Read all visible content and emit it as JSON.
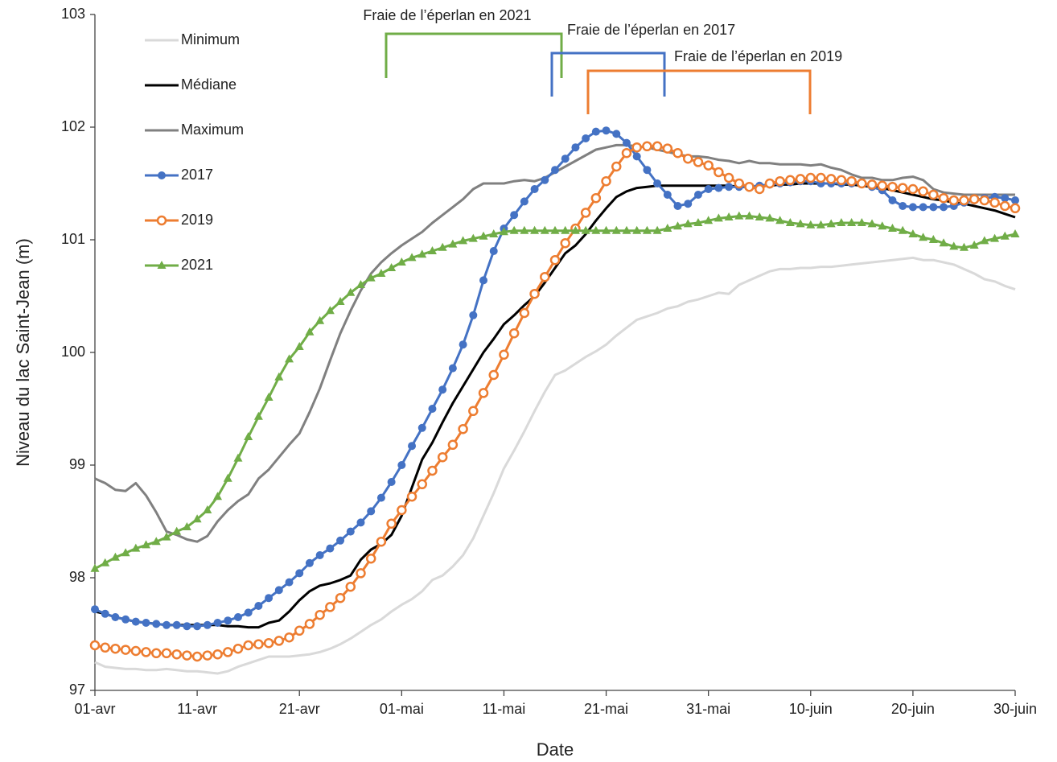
{
  "chart_data": {
    "type": "line",
    "x_label": "Date",
    "y_label": "Niveau du lac Saint-Jean (m)",
    "categories": [
      "01-avr",
      null,
      null,
      null,
      null,
      null,
      null,
      null,
      null,
      null,
      "11-avr",
      null,
      null,
      null,
      null,
      null,
      null,
      null,
      null,
      null,
      "21-avr",
      null,
      null,
      null,
      null,
      null,
      null,
      null,
      null,
      null,
      "01-mai",
      null,
      null,
      null,
      null,
      null,
      null,
      null,
      null,
      null,
      "11-mai",
      null,
      null,
      null,
      null,
      null,
      null,
      null,
      null,
      null,
      "21-mai",
      null,
      null,
      null,
      null,
      null,
      null,
      null,
      null,
      null,
      "31-mai",
      null,
      null,
      null,
      null,
      null,
      null,
      null,
      null,
      null,
      "10-juin",
      null,
      null,
      null,
      null,
      null,
      null,
      null,
      null,
      null,
      "20-juin",
      null,
      null,
      null,
      null,
      null,
      null,
      null,
      null,
      null,
      "30-juin"
    ],
    "ylim": [
      97,
      103
    ],
    "yticks": [
      97,
      98,
      99,
      100,
      101,
      102,
      103
    ],
    "legend": "top-left",
    "series": [
      {
        "name": "Minimum",
        "color": "#d9d9d9",
        "marker": "none",
        "values": [
          97.25,
          97.21,
          97.2,
          97.19,
          97.19,
          97.18,
          97.18,
          97.19,
          97.18,
          97.17,
          97.17,
          97.16,
          97.15,
          97.17,
          97.21,
          97.24,
          97.27,
          97.3,
          97.3,
          97.3,
          97.31,
          97.32,
          97.34,
          97.37,
          97.41,
          97.46,
          97.52,
          97.58,
          97.63,
          97.7,
          97.76,
          97.81,
          97.88,
          97.98,
          98.02,
          98.1,
          98.2,
          98.35,
          98.55,
          98.75,
          98.97,
          99.13,
          99.3,
          99.48,
          99.65,
          99.8,
          99.84,
          99.9,
          99.96,
          100.01,
          100.07,
          100.15,
          100.22,
          100.29,
          100.32,
          100.35,
          100.39,
          100.41,
          100.45,
          100.47,
          100.5,
          100.53,
          100.52,
          100.6,
          100.64,
          100.68,
          100.72,
          100.74,
          100.74,
          100.75,
          100.75,
          100.76,
          100.76,
          100.77,
          100.78,
          100.79,
          100.8,
          100.81,
          100.82,
          100.83,
          100.84,
          100.82,
          100.82,
          100.8,
          100.78,
          100.74,
          100.7,
          100.65,
          100.63,
          100.59,
          100.56
        ]
      },
      {
        "name": "Médiane",
        "color": "#000000",
        "marker": "none",
        "values": [
          97.7,
          97.68,
          97.65,
          97.63,
          97.61,
          97.6,
          97.59,
          97.58,
          97.58,
          97.58,
          97.58,
          97.58,
          97.58,
          97.57,
          97.57,
          97.56,
          97.56,
          97.6,
          97.62,
          97.7,
          97.8,
          97.88,
          97.93,
          97.95,
          97.98,
          98.02,
          98.16,
          98.25,
          98.3,
          98.38,
          98.55,
          98.8,
          99.05,
          99.2,
          99.38,
          99.55,
          99.7,
          99.85,
          100.0,
          100.12,
          100.25,
          100.33,
          100.42,
          100.5,
          100.62,
          100.75,
          100.88,
          100.95,
          101.05,
          101.17,
          101.28,
          101.38,
          101.43,
          101.46,
          101.47,
          101.48,
          101.48,
          101.48,
          101.48,
          101.48,
          101.48,
          101.48,
          101.48,
          101.47,
          101.47,
          101.48,
          101.48,
          101.49,
          101.49,
          101.5,
          101.5,
          101.5,
          101.5,
          101.49,
          101.49,
          101.48,
          101.47,
          101.46,
          101.44,
          101.42,
          101.4,
          101.38,
          101.36,
          101.35,
          101.33,
          101.32,
          101.3,
          101.28,
          101.26,
          101.23,
          101.2
        ]
      },
      {
        "name": "Maximum",
        "color": "#808080",
        "marker": "none",
        "values": [
          98.88,
          98.84,
          98.78,
          98.77,
          98.84,
          98.73,
          98.58,
          98.41,
          98.38,
          98.34,
          98.32,
          98.37,
          98.5,
          98.6,
          98.68,
          98.74,
          98.88,
          98.96,
          99.07,
          99.18,
          99.28,
          99.47,
          99.68,
          99.93,
          100.17,
          100.37,
          100.55,
          100.7,
          100.8,
          100.88,
          100.95,
          101.01,
          101.07,
          101.15,
          101.22,
          101.29,
          101.36,
          101.45,
          101.5,
          101.5,
          101.5,
          101.52,
          101.53,
          101.52,
          101.55,
          101.6,
          101.65,
          101.7,
          101.75,
          101.8,
          101.82,
          101.84,
          101.84,
          101.83,
          101.82,
          101.8,
          101.78,
          101.76,
          101.74,
          101.74,
          101.73,
          101.71,
          101.7,
          101.68,
          101.7,
          101.68,
          101.68,
          101.67,
          101.67,
          101.67,
          101.66,
          101.67,
          101.64,
          101.62,
          101.58,
          101.55,
          101.55,
          101.53,
          101.53,
          101.55,
          101.56,
          101.53,
          101.45,
          101.42,
          101.41,
          101.4,
          101.4,
          101.4,
          101.4,
          101.4,
          101.4
        ]
      },
      {
        "name": "2017",
        "color": "#4472c4",
        "marker": "circle",
        "values": [
          97.72,
          97.68,
          97.65,
          97.63,
          97.61,
          97.6,
          97.59,
          97.58,
          97.58,
          97.57,
          97.57,
          97.58,
          97.6,
          97.62,
          97.65,
          97.69,
          97.75,
          97.82,
          97.89,
          97.96,
          98.04,
          98.13,
          98.2,
          98.26,
          98.33,
          98.41,
          98.49,
          98.59,
          98.71,
          98.85,
          99.0,
          99.17,
          99.33,
          99.5,
          99.67,
          99.86,
          100.07,
          100.33,
          100.64,
          100.9,
          101.1,
          101.22,
          101.34,
          101.45,
          101.53,
          101.62,
          101.72,
          101.82,
          101.9,
          101.96,
          101.97,
          101.94,
          101.86,
          101.74,
          101.62,
          101.5,
          101.4,
          101.3,
          101.32,
          101.4,
          101.45,
          101.46,
          101.47,
          101.47,
          101.47,
          101.48,
          101.49,
          101.5,
          101.51,
          101.52,
          101.52,
          101.5,
          101.5,
          101.5,
          101.5,
          101.5,
          101.47,
          101.44,
          101.35,
          101.3,
          101.29,
          101.29,
          101.29,
          101.29,
          101.3,
          101.33,
          101.35,
          101.37,
          101.38,
          101.37,
          101.35
        ]
      },
      {
        "name": "2019",
        "color": "#ed7d31",
        "marker": "circle-open",
        "values": [
          97.4,
          97.38,
          97.37,
          97.36,
          97.35,
          97.34,
          97.33,
          97.33,
          97.32,
          97.31,
          97.3,
          97.31,
          97.32,
          97.34,
          97.37,
          97.4,
          97.41,
          97.42,
          97.44,
          97.47,
          97.53,
          97.59,
          97.67,
          97.74,
          97.82,
          97.92,
          98.04,
          98.17,
          98.32,
          98.48,
          98.6,
          98.72,
          98.83,
          98.95,
          99.07,
          99.18,
          99.32,
          99.48,
          99.64,
          99.8,
          99.98,
          100.17,
          100.35,
          100.52,
          100.67,
          100.82,
          100.97,
          101.1,
          101.24,
          101.37,
          101.52,
          101.65,
          101.77,
          101.82,
          101.83,
          101.83,
          101.81,
          101.77,
          101.72,
          101.69,
          101.66,
          101.6,
          101.55,
          101.5,
          101.47,
          101.45,
          101.5,
          101.52,
          101.53,
          101.54,
          101.55,
          101.55,
          101.54,
          101.53,
          101.52,
          101.5,
          101.49,
          101.48,
          101.47,
          101.46,
          101.45,
          101.43,
          101.4,
          101.37,
          101.35,
          101.35,
          101.36,
          101.35,
          101.33,
          101.3,
          101.28
        ]
      },
      {
        "name": "2021",
        "color": "#70ad47",
        "marker": "triangle",
        "values": [
          98.08,
          98.13,
          98.18,
          98.22,
          98.26,
          98.29,
          98.32,
          98.36,
          98.41,
          98.45,
          98.52,
          98.6,
          98.72,
          98.88,
          99.06,
          99.25,
          99.43,
          99.6,
          99.78,
          99.94,
          100.05,
          100.18,
          100.28,
          100.37,
          100.45,
          100.53,
          100.6,
          100.66,
          100.7,
          100.75,
          100.8,
          100.84,
          100.87,
          100.9,
          100.93,
          100.96,
          100.99,
          101.01,
          101.03,
          101.05,
          101.07,
          101.08,
          101.08,
          101.08,
          101.08,
          101.08,
          101.08,
          101.08,
          101.08,
          101.08,
          101.08,
          101.08,
          101.08,
          101.08,
          101.08,
          101.08,
          101.1,
          101.12,
          101.14,
          101.15,
          101.17,
          101.19,
          101.2,
          101.21,
          101.21,
          101.2,
          101.19,
          101.17,
          101.15,
          101.14,
          101.13,
          101.13,
          101.14,
          101.15,
          101.15,
          101.15,
          101.14,
          101.12,
          101.1,
          101.08,
          101.05,
          101.02,
          101.0,
          100.97,
          100.94,
          100.93,
          100.95,
          100.99,
          101.01,
          101.03,
          101.05
        ]
      }
    ],
    "annotations": [
      {
        "text": "Fraie de l’éperlan en 2021",
        "color": "#70ad47"
      },
      {
        "text": "Fraie de l’éperlan en 2017",
        "color": "#4472c4"
      },
      {
        "text": "Fraie de l’éperlan en 2019",
        "color": "#ed7d31"
      }
    ]
  }
}
